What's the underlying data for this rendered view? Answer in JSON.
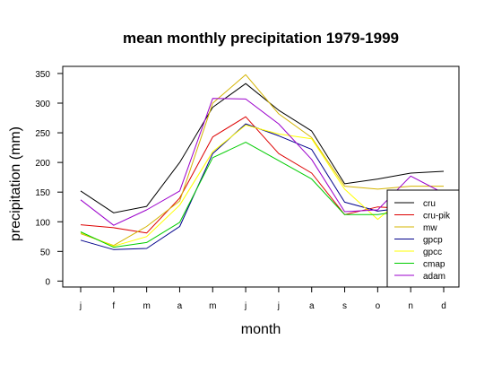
{
  "chart_data": {
    "type": "line",
    "title": "mean monthly precipitation 1979-1999",
    "xlabel": "month",
    "ylabel": "precipitation (mm)",
    "categories": [
      "j",
      "f",
      "m",
      "a",
      "m",
      "j",
      "j",
      "a",
      "s",
      "o",
      "n",
      "d"
    ],
    "ylim": [
      -10,
      362
    ],
    "yticks": [
      0,
      50,
      100,
      150,
      200,
      250,
      300,
      350
    ],
    "grid": false,
    "legend_position": "bottom-right",
    "series": [
      {
        "name": "cru",
        "color": "#000000",
        "values": [
          152,
          115,
          126,
          200,
          293,
          333,
          288,
          253,
          164,
          172,
          182,
          185
        ]
      },
      {
        "name": "cru-pik",
        "color": "#dd0000",
        "values": [
          95,
          90,
          81,
          140,
          243,
          277,
          215,
          182,
          112,
          125,
          122,
          115
        ]
      },
      {
        "name": "mw",
        "color": "#d4b400",
        "values": [
          80,
          60,
          92,
          135,
          300,
          348,
          282,
          242,
          160,
          155,
          160,
          160
        ]
      },
      {
        "name": "gpcp",
        "color": "#00008b",
        "values": [
          69,
          53,
          55,
          92,
          215,
          265,
          245,
          222,
          133,
          118,
          125,
          110
        ]
      },
      {
        "name": "gpcc",
        "color": "#ffff00",
        "values": [
          82,
          59,
          75,
          128,
          218,
          263,
          248,
          240,
          155,
          104,
          150,
          150
        ]
      },
      {
        "name": "cmap",
        "color": "#00cc00",
        "values": [
          83,
          57,
          65,
          99,
          208,
          234,
          203,
          172,
          112,
          112,
          120,
          110
        ]
      },
      {
        "name": "adam",
        "color": "#9b00cc",
        "values": [
          137,
          94,
          120,
          152,
          308,
          307,
          265,
          205,
          117,
          120,
          177,
          148
        ]
      }
    ]
  }
}
